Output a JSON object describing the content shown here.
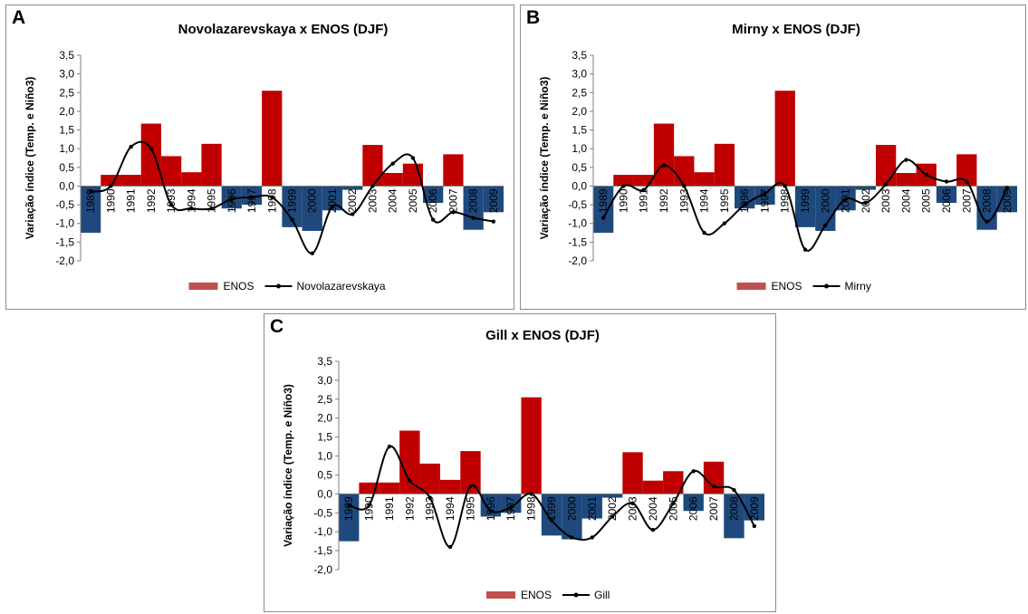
{
  "chart_data": [
    {
      "type": "bar+line",
      "panel_label": "A",
      "title": "Novolazarevskaya x ENOS (DJF)",
      "ylabel": "Variação índice (Temp. e Niño3)",
      "xlabel": "",
      "ylim": [
        -2.0,
        3.5
      ],
      "y_ticks": [
        "3,5",
        "3,0",
        "2,5",
        "2,0",
        "1,5",
        "1,0",
        "0,5",
        "0,0",
        "-0,5",
        "-1,0",
        "-1,5",
        "-2,0"
      ],
      "categories": [
        "1989",
        "1990",
        "1991",
        "1992",
        "1993",
        "1994",
        "1995",
        "1996",
        "1997",
        "1998",
        "1999",
        "2000",
        "2001",
        "2002",
        "2003",
        "2004",
        "2005",
        "2006",
        "2007",
        "2008",
        "2009"
      ],
      "grid": false,
      "legend_position": "bottom",
      "series": [
        {
          "name": "ENOS",
          "kind": "bar",
          "values": [
            -1.25,
            0.3,
            0.3,
            1.67,
            0.8,
            0.37,
            1.13,
            -0.6,
            -0.5,
            2.55,
            -1.1,
            -1.2,
            -0.65,
            -0.1,
            1.1,
            0.35,
            0.6,
            -0.45,
            0.85,
            -1.17,
            -0.7
          ]
        },
        {
          "name": "Novolazarevskaya",
          "kind": "line",
          "values": [
            -0.15,
            0.0,
            1.05,
            1.0,
            -0.5,
            -0.6,
            -0.6,
            -0.35,
            -0.3,
            -0.3,
            -0.9,
            -1.8,
            -0.55,
            -0.75,
            0.0,
            0.6,
            0.75,
            -0.9,
            -0.7,
            -0.85,
            -0.95
          ]
        }
      ]
    },
    {
      "type": "bar+line",
      "panel_label": "B",
      "title": "Mirny x ENOS (DJF)",
      "ylabel": "Variação índice (Temp. e Niño3)",
      "xlabel": "",
      "ylim": [
        -2.0,
        3.5
      ],
      "y_ticks": [
        "3,5",
        "3,0",
        "2,5",
        "2,0",
        "1,5",
        "1,0",
        "0,5",
        "0,0",
        "-0,5",
        "-1,0",
        "-1,5",
        "-2,0"
      ],
      "categories": [
        "1989",
        "1990",
        "1991",
        "1992",
        "1993",
        "1994",
        "1995",
        "1996",
        "1997",
        "1998",
        "1999",
        "2000",
        "2001",
        "2002",
        "2003",
        "2004",
        "2005",
        "2006",
        "2007",
        "2008",
        "2009"
      ],
      "grid": false,
      "legend_position": "bottom",
      "series": [
        {
          "name": "ENOS",
          "kind": "bar",
          "values": [
            -1.25,
            0.3,
            0.3,
            1.67,
            0.8,
            0.37,
            1.13,
            -0.6,
            -0.5,
            2.55,
            -1.1,
            -1.2,
            -0.65,
            -0.1,
            1.1,
            0.35,
            0.6,
            -0.45,
            0.85,
            -1.17,
            -0.7
          ]
        },
        {
          "name": "Mirny",
          "kind": "line",
          "values": [
            -0.85,
            0.0,
            -0.1,
            0.55,
            0.0,
            -1.25,
            -1.0,
            -0.5,
            -0.2,
            0.0,
            -1.7,
            -1.05,
            -0.35,
            -0.45,
            0.05,
            0.7,
            0.3,
            0.12,
            0.12,
            -0.95,
            -0.05
          ]
        }
      ]
    },
    {
      "type": "bar+line",
      "panel_label": "C",
      "title": "Gill x ENOS (DJF)",
      "ylabel": "Variação índice (Temp. e Niño3)",
      "xlabel": "",
      "ylim": [
        -2.0,
        3.5
      ],
      "y_ticks": [
        "3,5",
        "3,0",
        "2,5",
        "2,0",
        "1,5",
        "1,0",
        "0,5",
        "0,0",
        "-0,5",
        "-1,0",
        "-1,5",
        "-2,0"
      ],
      "categories": [
        "1989",
        "1990",
        "1991",
        "1992",
        "1993",
        "1994",
        "1995",
        "1996",
        "1997",
        "1998",
        "1999",
        "2000",
        "2001",
        "2002",
        "2003",
        "2004",
        "2005",
        "2006",
        "2007",
        "2008",
        "2009"
      ],
      "grid": false,
      "legend_position": "bottom",
      "series": [
        {
          "name": "ENOS",
          "kind": "bar",
          "values": [
            -1.25,
            0.3,
            0.3,
            1.67,
            0.8,
            0.37,
            1.13,
            -0.6,
            -0.5,
            2.55,
            -1.1,
            -1.2,
            -0.65,
            -0.1,
            1.1,
            0.35,
            0.6,
            -0.45,
            0.85,
            -1.17,
            -0.7
          ]
        },
        {
          "name": "Gill",
          "kind": "line",
          "values": [
            -0.3,
            -0.3,
            1.25,
            0.35,
            -0.1,
            -1.4,
            0.2,
            -0.45,
            -0.35,
            0.0,
            -0.7,
            -1.15,
            -1.15,
            -0.6,
            -0.25,
            -0.95,
            -0.25,
            0.6,
            0.2,
            0.1,
            -0.85
          ]
        }
      ]
    }
  ],
  "colors": {
    "positive_bar": "#c00000",
    "negative_bar": "#1f497d",
    "legend_bar": "#c0504d",
    "line": "#000000"
  }
}
